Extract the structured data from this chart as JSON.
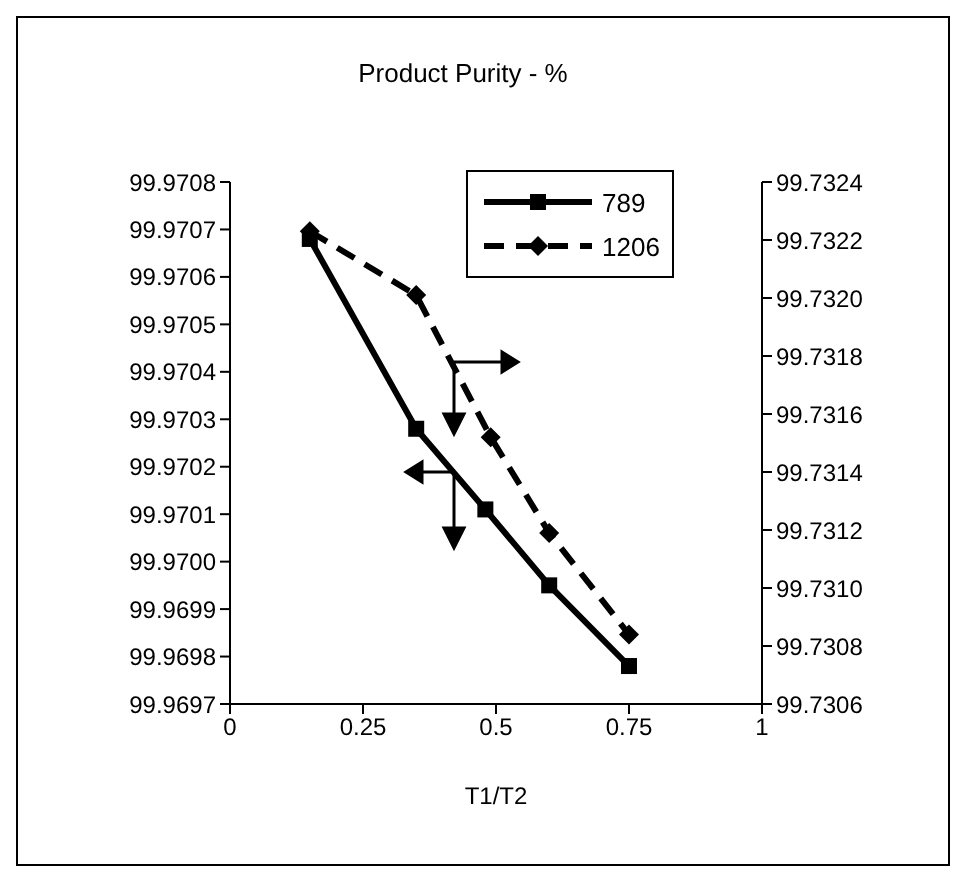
{
  "chart_data": {
    "type": "line",
    "title": "Product Purity - %",
    "xlabel": "T1/T2",
    "xlim": [
      0,
      1
    ],
    "xticks": [
      0,
      0.25,
      0.5,
      0.75,
      1
    ],
    "ylim": [
      99.9697,
      99.9708
    ],
    "yticks": [
      99.9697,
      99.9698,
      99.9699,
      {
        "value": 99.97,
        "label": "99.9700"
      },
      99.9701,
      99.9702,
      99.9703,
      99.9704,
      99.9705,
      99.9706,
      99.9707,
      99.9708
    ],
    "y2lim": [
      99.7306,
      99.7324
    ],
    "y2ticks": [
      99.7306,
      99.7308,
      {
        "value": 99.731,
        "label": "99.7310"
      },
      99.7312,
      99.7314,
      99.7316,
      99.7318,
      {
        "value": 99.732,
        "label": "99.7320"
      },
      99.7322,
      99.7324
    ],
    "legend": "top right",
    "series": [
      {
        "name": "789",
        "color": "#000000",
        "marker": "square",
        "line_style": "solid",
        "x": [
          0.15,
          0.35,
          0.48,
          0.6,
          0.75
        ],
        "values": [
          99.97068,
          99.97028,
          99.97011,
          99.96995,
          99.96978
        ]
      },
      {
        "name": "1206",
        "color": "#000000",
        "marker": "diamond",
        "line_style": "dashed",
        "axis": "y2",
        "x": [
          0.15,
          0.35,
          0.49,
          0.6,
          0.75
        ],
        "values": [
          99.73223,
          99.73201,
          99.73152,
          99.73119,
          99.73084
        ]
      }
    ]
  }
}
